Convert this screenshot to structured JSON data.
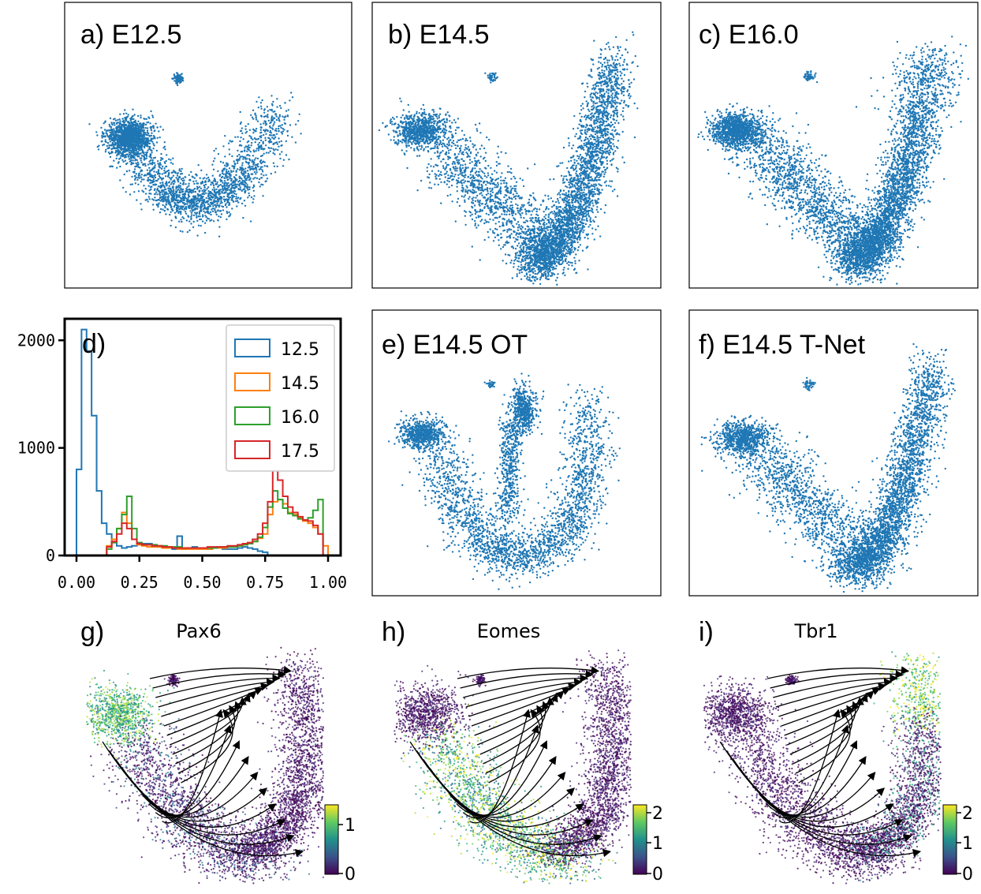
{
  "figure": {
    "panels": {
      "a": {
        "label": "a) E12.5"
      },
      "b": {
        "label": "b) E14.5"
      },
      "c": {
        "label": "c) E16.0"
      },
      "d": {
        "label": "d)"
      },
      "e": {
        "label": "e) E14.5 OT"
      },
      "f": {
        "label": "f) E14.5 T-Net"
      },
      "g": {
        "label": "g)",
        "gene": "Pax6"
      },
      "h": {
        "label": "h)",
        "gene": "Eomes"
      },
      "i": {
        "label": "i)",
        "gene": "Tbr1"
      }
    },
    "colors": {
      "scatter": "#1f77b4",
      "s12_5": "#1f77b4",
      "s14_5": "#ff7f0e",
      "s16_0": "#2ca02c",
      "s17_5": "#d62728"
    }
  },
  "chart_data": [
    {
      "id": "a",
      "type": "scatter",
      "title": "a) E12.5",
      "clusters": [
        {
          "x": -0.9,
          "y": 0.55,
          "weight": 0.45
        },
        {
          "x": 0.0,
          "y": -0.6,
          "weight": 0.35
        },
        {
          "x": 0.7,
          "y": 0.0,
          "weight": 0.2
        }
      ]
    },
    {
      "id": "b",
      "type": "scatter",
      "title": "b) E14.5"
    },
    {
      "id": "c",
      "type": "scatter",
      "title": "c) E16.0"
    },
    {
      "id": "d",
      "type": "step_histogram",
      "title": "d)",
      "xlim": [
        0,
        1
      ],
      "ylim": [
        0,
        2200
      ],
      "xticks": [
        "0.00",
        "0.25",
        "0.50",
        "0.75",
        "1.00"
      ],
      "yticks": [
        "0",
        "1000",
        "2000"
      ],
      "legend_position": "top-right",
      "bins": [
        0.0,
        0.02,
        0.04,
        0.06,
        0.08,
        0.1,
        0.12,
        0.14,
        0.16,
        0.18,
        0.2,
        0.22,
        0.24,
        0.26,
        0.28,
        0.3,
        0.32,
        0.34,
        0.36,
        0.38,
        0.4,
        0.42,
        0.44,
        0.46,
        0.48,
        0.5,
        0.52,
        0.54,
        0.56,
        0.58,
        0.6,
        0.62,
        0.64,
        0.66,
        0.68,
        0.7,
        0.72,
        0.74,
        0.76,
        0.78,
        0.8,
        0.82,
        0.84,
        0.86,
        0.88,
        0.9,
        0.92,
        0.94,
        0.96,
        0.98
      ],
      "series": [
        {
          "name": "12.5",
          "color": "#1f77b4",
          "values": [
            800,
            2100,
            1900,
            1300,
            600,
            300,
            200,
            120,
            90,
            70,
            80,
            90,
            100,
            110,
            110,
            90,
            80,
            80,
            70,
            60,
            180,
            60,
            70,
            80,
            70,
            70,
            60,
            70,
            70,
            60,
            60,
            60,
            70,
            80,
            70,
            60,
            40,
            30,
            0,
            0,
            0,
            0,
            0,
            0,
            0,
            0,
            0,
            0,
            0,
            0
          ]
        },
        {
          "name": "14.5",
          "color": "#ff7f0e",
          "values": [
            0,
            0,
            0,
            0,
            0,
            0,
            90,
            150,
            250,
            400,
            300,
            150,
            100,
            90,
            80,
            80,
            80,
            70,
            70,
            70,
            60,
            60,
            60,
            60,
            60,
            60,
            60,
            70,
            70,
            70,
            80,
            80,
            90,
            100,
            110,
            130,
            160,
            200,
            380,
            500,
            520,
            480,
            400,
            380,
            350,
            320,
            300,
            260,
            200,
            90
          ]
        },
        {
          "name": "16.0",
          "color": "#2ca02c",
          "values": [
            0,
            0,
            0,
            0,
            0,
            0,
            60,
            120,
            250,
            380,
            550,
            250,
            120,
            100,
            100,
            100,
            90,
            90,
            80,
            80,
            80,
            70,
            70,
            70,
            70,
            70,
            70,
            70,
            80,
            80,
            80,
            80,
            90,
            100,
            110,
            130,
            170,
            260,
            450,
            600,
            520,
            440,
            390,
            370,
            340,
            330,
            350,
            420,
            520,
            0
          ]
        },
        {
          "name": "17.5",
          "color": "#d62728",
          "values": [
            0,
            0,
            0,
            0,
            0,
            0,
            80,
            130,
            200,
            300,
            250,
            150,
            110,
            100,
            100,
            90,
            90,
            80,
            80,
            70,
            70,
            70,
            70,
            70,
            70,
            70,
            80,
            80,
            80,
            80,
            90,
            90,
            100,
            110,
            120,
            150,
            200,
            300,
            500,
            800,
            700,
            550,
            450,
            400,
            360,
            330,
            320,
            280,
            200,
            0
          ]
        }
      ]
    },
    {
      "id": "e",
      "type": "scatter",
      "title": "e) E14.5 OT"
    },
    {
      "id": "f",
      "type": "scatter",
      "title": "f) E14.5 T-Net"
    },
    {
      "id": "g",
      "type": "velocity_stream",
      "gene": "Pax6",
      "colorbar_ticks": [
        "1",
        "0"
      ],
      "colorbar_range": [
        0,
        1.3
      ]
    },
    {
      "id": "h",
      "type": "velocity_stream",
      "gene": "Eomes",
      "colorbar_ticks": [
        "2",
        "1",
        "0"
      ],
      "colorbar_range": [
        0,
        2.3
      ]
    },
    {
      "id": "i",
      "type": "velocity_stream",
      "gene": "Tbr1",
      "colorbar_ticks": [
        "2",
        "1",
        "0"
      ],
      "colorbar_range": [
        0,
        2.3
      ]
    }
  ]
}
